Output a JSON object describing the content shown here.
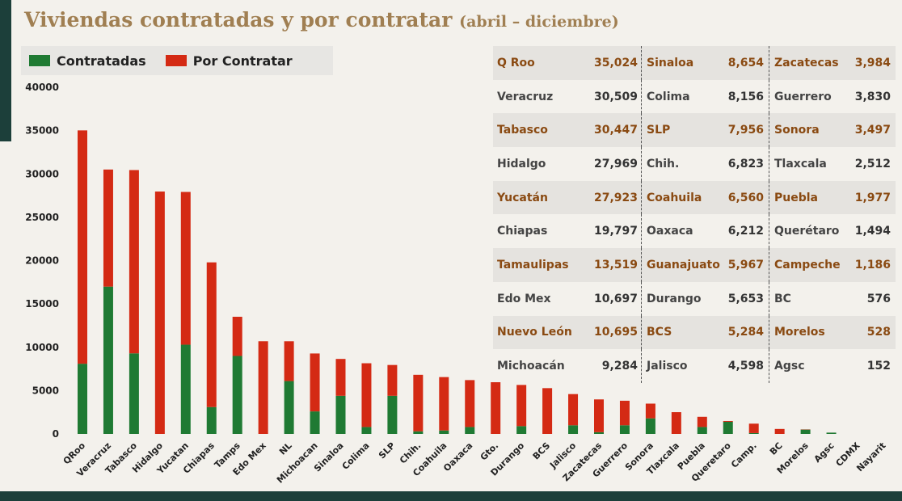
{
  "title": {
    "main": "Viviendas contratadas y por contratar",
    "sub": "(abril – diciembre)"
  },
  "colors": {
    "contratadas": "#1f7a33",
    "por_contratar": "#d42a14",
    "title": "#a07f52",
    "highlight_text": "#8a4a12",
    "dark_teal": "#1c3f3a"
  },
  "chart_data": {
    "type": "bar",
    "stacked": true,
    "title": "Viviendas contratadas y por contratar (abril – diciembre)",
    "ylim": [
      0,
      40000
    ],
    "yticks": [
      0,
      5000,
      10000,
      15000,
      20000,
      25000,
      30000,
      35000,
      40000
    ],
    "legend": [
      {
        "name": "Contratadas",
        "color": "#1f7a33"
      },
      {
        "name": "Por Contratar",
        "color": "#d42a14"
      }
    ],
    "categories": [
      "QRoo",
      "Veracruz",
      "Tabasco",
      "Hidalgo",
      "Yucatan",
      "Chiapas",
      "Tamps",
      "Edo Mex",
      "NL",
      "Michoacan",
      "Sinaloa",
      "Colima",
      "SLP",
      "Chih.",
      "Coahuila",
      "Oaxaca",
      "Gto.",
      "Durango",
      "BCS",
      "Jalisco",
      "Zacatecas",
      "Guerrero",
      "Sonora",
      "Tlaxcala",
      "Puebla",
      "Queretaro",
      "Camp.",
      "BC",
      "Morelos",
      "Agsc",
      "CDMX",
      "Nayarit"
    ],
    "series": [
      {
        "name": "Contratadas",
        "values": [
          8100,
          17000,
          9300,
          0,
          10300,
          3100,
          9000,
          0,
          6100,
          2600,
          4400,
          800,
          4400,
          300,
          400,
          800,
          0,
          900,
          0,
          1000,
          200,
          1000,
          1800,
          0,
          800,
          1400,
          100,
          0,
          500,
          150,
          0,
          0
        ]
      },
      {
        "name": "Por Contratar",
        "values": [
          26924,
          13509,
          21147,
          27969,
          17623,
          16697,
          4519,
          10697,
          4595,
          6684,
          4254,
          7356,
          3556,
          6523,
          6160,
          5412,
          5967,
          4753,
          5284,
          3598,
          3784,
          2830,
          1697,
          2512,
          1177,
          94,
          1086,
          576,
          28,
          2,
          0,
          0
        ]
      }
    ],
    "totals": [
      35024,
      30509,
      30447,
      27969,
      27923,
      19797,
      13519,
      10697,
      10695,
      9284,
      8654,
      8156,
      7956,
      6823,
      6560,
      6212,
      5967,
      5653,
      5284,
      4598,
      3984,
      3830,
      3497,
      2512,
      1977,
      1494,
      1186,
      576,
      528,
      152,
      0,
      0
    ]
  },
  "table": {
    "col1": [
      {
        "name": "Q Roo",
        "value": "35,024",
        "hl": true
      },
      {
        "name": "Veracruz",
        "value": "30,509",
        "hl": false
      },
      {
        "name": "Tabasco",
        "value": "30,447",
        "hl": true
      },
      {
        "name": "Hidalgo",
        "value": "27,969",
        "hl": false
      },
      {
        "name": "Yucatán",
        "value": "27,923",
        "hl": true
      },
      {
        "name": "Chiapas",
        "value": "19,797",
        "hl": false
      },
      {
        "name": "Tamaulipas",
        "value": "13,519",
        "hl": true
      },
      {
        "name": "Edo Mex",
        "value": "10,697",
        "hl": false
      },
      {
        "name": "Nuevo León",
        "value": "10,695",
        "hl": true
      },
      {
        "name": "Michoacán",
        "value": "9,284",
        "hl": false
      }
    ],
    "col2": [
      {
        "name": "Sinaloa",
        "value": "8,654"
      },
      {
        "name": "Colima",
        "value": "8,156"
      },
      {
        "name": "SLP",
        "value": "7,956"
      },
      {
        "name": "Chih.",
        "value": "6,823"
      },
      {
        "name": "Coahuila",
        "value": "6,560"
      },
      {
        "name": "Oaxaca",
        "value": "6,212"
      },
      {
        "name": "Guanajuato",
        "value": "5,967"
      },
      {
        "name": "Durango",
        "value": "5,653"
      },
      {
        "name": "BCS",
        "value": "5,284"
      },
      {
        "name": "Jalisco",
        "value": "4,598"
      }
    ],
    "col3": [
      {
        "name": "Zacatecas",
        "value": "3,984"
      },
      {
        "name": "Guerrero",
        "value": "3,830"
      },
      {
        "name": "Sonora",
        "value": "3,497"
      },
      {
        "name": "Tlaxcala",
        "value": "2,512"
      },
      {
        "name": "Puebla",
        "value": "1,977"
      },
      {
        "name": "Querétaro",
        "value": "1,494"
      },
      {
        "name": "Campeche",
        "value": "1,186"
      },
      {
        "name": "BC",
        "value": "576"
      },
      {
        "name": "Morelos",
        "value": "528"
      },
      {
        "name": "Agsc",
        "value": "152"
      }
    ]
  }
}
